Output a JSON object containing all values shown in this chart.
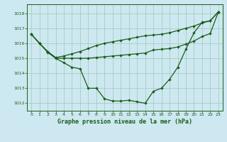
{
  "title": "Graphe pression niveau de la mer (hPa)",
  "bg_color": "#cde8f0",
  "grid_color": "#a0c8b8",
  "line_color": "#1a5c1a",
  "xlim": [
    -0.5,
    23.5
  ],
  "ylim": [
    1011.5,
    1018.6
  ],
  "yticks": [
    1012,
    1013,
    1014,
    1015,
    1016,
    1017,
    1018
  ],
  "xticks": [
    0,
    1,
    2,
    3,
    4,
    5,
    6,
    7,
    8,
    9,
    10,
    11,
    12,
    13,
    14,
    15,
    16,
    17,
    18,
    19,
    20,
    21,
    22,
    23
  ],
  "s1": [
    1016.6,
    1016.0,
    1015.4,
    1015.0,
    1014.7,
    1014.4,
    1014.3,
    1013.0,
    1013.0,
    1012.3,
    1012.15,
    1012.15,
    1012.2,
    1012.1,
    1012.0,
    1012.8,
    1013.0,
    1013.6,
    1014.4,
    1015.6,
    1016.7,
    1017.4,
    1017.5,
    1018.1
  ],
  "s2": [
    1016.6,
    1016.0,
    1015.45,
    1015.0,
    1015.0,
    1015.0,
    1015.0,
    1015.0,
    1015.05,
    1015.1,
    1015.15,
    1015.2,
    1015.25,
    1015.3,
    1015.35,
    1015.55,
    1015.6,
    1015.65,
    1015.75,
    1015.95,
    1016.15,
    1016.45,
    1016.65,
    1018.1
  ],
  "s3": [
    1016.6,
    1016.0,
    1015.45,
    1015.05,
    1015.15,
    1015.3,
    1015.45,
    1015.65,
    1015.85,
    1016.0,
    1016.1,
    1016.2,
    1016.3,
    1016.4,
    1016.5,
    1016.55,
    1016.6,
    1016.7,
    1016.85,
    1017.0,
    1017.15,
    1017.35,
    1017.5,
    1018.1
  ],
  "title_fontsize": 6.0,
  "tick_fontsize": 4.5
}
